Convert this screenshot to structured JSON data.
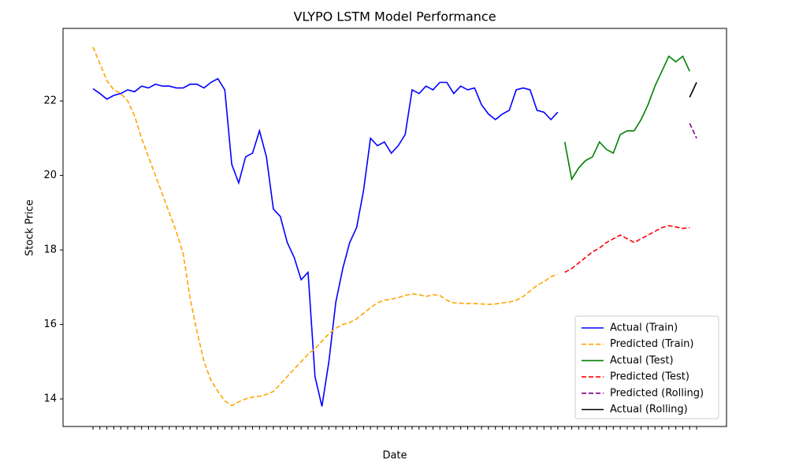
{
  "chart_data": {
    "type": "line",
    "title": "VLYPO LSTM Model Performance",
    "x_label": "Date",
    "y_label": "Stock Price",
    "categories": [
      null,
      null,
      null,
      null,
      null,
      null,
      null,
      null,
      null,
      null,
      null,
      null,
      null,
      null,
      null,
      null,
      null,
      null,
      null,
      null,
      null,
      null,
      null,
      null,
      null,
      null,
      null,
      null,
      null,
      null,
      null,
      null,
      null,
      null,
      null,
      null,
      null,
      null,
      null,
      null,
      null,
      null,
      null,
      null,
      null,
      null,
      null,
      null,
      null,
      null,
      null,
      null,
      null,
      null,
      null,
      null,
      null,
      null,
      null,
      null,
      null,
      null,
      null,
      null,
      null,
      null,
      null,
      null,
      null,
      null,
      null,
      null,
      null,
      null,
      null,
      null,
      null,
      null,
      null,
      null,
      null,
      null,
      null,
      null,
      null,
      null,
      null,
      null
    ],
    "ylim": [
      13.26,
      23.95
    ],
    "yticks": [
      14,
      16,
      18,
      20,
      22
    ],
    "legend": "lower right",
    "series": [
      {
        "name": "Actual (Train)",
        "color": "#0000ff",
        "linestyle": "solid",
        "values": [
          22.33,
          22.2,
          22.05,
          22.15,
          22.2,
          22.3,
          22.25,
          22.4,
          22.35,
          22.45,
          22.4,
          22.4,
          22.35,
          22.35,
          22.45,
          22.45,
          22.35,
          22.5,
          22.6,
          22.3,
          20.3,
          19.8,
          20.5,
          20.6,
          21.2,
          20.5,
          19.1,
          18.9,
          18.2,
          17.8,
          17.2,
          17.4,
          14.6,
          13.8,
          15.0,
          16.6,
          17.5,
          18.2,
          18.6,
          19.6,
          21.0,
          20.8,
          20.9,
          20.6,
          20.8,
          21.1,
          22.3,
          22.2,
          22.4,
          22.3,
          22.5,
          22.5,
          22.2,
          22.4,
          22.3,
          22.35,
          21.9,
          21.65,
          21.5,
          21.65,
          21.75,
          22.3,
          22.35,
          22.3,
          21.75,
          21.7,
          21.5,
          21.7,
          null,
          null,
          null,
          null,
          null,
          null,
          null,
          null,
          null,
          null,
          null,
          null,
          null,
          null,
          null,
          null,
          null,
          null,
          null,
          null
        ]
      },
      {
        "name": "Predicted (Train)",
        "color": "#ffa500",
        "linestyle": "dashed",
        "values": [
          23.45,
          23.0,
          22.55,
          22.3,
          22.2,
          22.0,
          21.6,
          21.0,
          20.5,
          20.0,
          19.5,
          19.0,
          18.5,
          17.9,
          16.7,
          15.8,
          15.0,
          14.5,
          14.2,
          13.95,
          13.82,
          13.92,
          14.0,
          14.05,
          14.07,
          14.12,
          14.2,
          14.4,
          14.6,
          14.8,
          15.0,
          15.2,
          15.35,
          15.55,
          15.75,
          15.9,
          16.0,
          16.05,
          16.15,
          16.3,
          16.45,
          16.58,
          16.65,
          16.68,
          16.72,
          16.78,
          16.82,
          16.8,
          16.75,
          16.8,
          16.78,
          16.65,
          16.58,
          16.57,
          16.56,
          16.56,
          16.55,
          16.54,
          16.55,
          16.58,
          16.6,
          16.65,
          16.75,
          16.9,
          17.05,
          17.15,
          17.28,
          17.35,
          null,
          null,
          null,
          null,
          null,
          null,
          null,
          null,
          null,
          null,
          null,
          null,
          null,
          null,
          null,
          null,
          null,
          null,
          null,
          null
        ]
      },
      {
        "name": "Actual (Test)",
        "color": "#008000",
        "linestyle": "solid",
        "values": [
          null,
          null,
          null,
          null,
          null,
          null,
          null,
          null,
          null,
          null,
          null,
          null,
          null,
          null,
          null,
          null,
          null,
          null,
          null,
          null,
          null,
          null,
          null,
          null,
          null,
          null,
          null,
          null,
          null,
          null,
          null,
          null,
          null,
          null,
          null,
          null,
          null,
          null,
          null,
          null,
          null,
          null,
          null,
          null,
          null,
          null,
          null,
          null,
          null,
          null,
          null,
          null,
          null,
          null,
          null,
          null,
          null,
          null,
          null,
          null,
          null,
          null,
          null,
          null,
          null,
          null,
          null,
          null,
          20.9,
          19.9,
          20.2,
          20.4,
          20.5,
          20.9,
          20.7,
          20.6,
          21.1,
          21.2,
          21.2,
          21.5,
          21.9,
          22.4,
          22.8,
          23.2,
          23.05,
          23.2,
          22.8,
          null
        ]
      },
      {
        "name": "Predicted (Test)",
        "color": "#ff0000",
        "linestyle": "dashed",
        "values": [
          null,
          null,
          null,
          null,
          null,
          null,
          null,
          null,
          null,
          null,
          null,
          null,
          null,
          null,
          null,
          null,
          null,
          null,
          null,
          null,
          null,
          null,
          null,
          null,
          null,
          null,
          null,
          null,
          null,
          null,
          null,
          null,
          null,
          null,
          null,
          null,
          null,
          null,
          null,
          null,
          null,
          null,
          null,
          null,
          null,
          null,
          null,
          null,
          null,
          null,
          null,
          null,
          null,
          null,
          null,
          null,
          null,
          null,
          null,
          null,
          null,
          null,
          null,
          null,
          null,
          null,
          null,
          null,
          17.4,
          17.5,
          17.65,
          17.8,
          17.95,
          18.05,
          18.2,
          18.3,
          18.4,
          18.3,
          18.2,
          18.3,
          18.4,
          18.5,
          18.6,
          18.65,
          18.62,
          18.58,
          18.6,
          null
        ]
      },
      {
        "name": "Predicted (Rolling)",
        "color": "#800080",
        "linestyle": "dashed",
        "values": [
          null,
          null,
          null,
          null,
          null,
          null,
          null,
          null,
          null,
          null,
          null,
          null,
          null,
          null,
          null,
          null,
          null,
          null,
          null,
          null,
          null,
          null,
          null,
          null,
          null,
          null,
          null,
          null,
          null,
          null,
          null,
          null,
          null,
          null,
          null,
          null,
          null,
          null,
          null,
          null,
          null,
          null,
          null,
          null,
          null,
          null,
          null,
          null,
          null,
          null,
          null,
          null,
          null,
          null,
          null,
          null,
          null,
          null,
          null,
          null,
          null,
          null,
          null,
          null,
          null,
          null,
          null,
          null,
          null,
          null,
          null,
          null,
          null,
          null,
          null,
          null,
          null,
          null,
          null,
          null,
          null,
          null,
          null,
          null,
          null,
          null,
          21.4,
          21.0
        ]
      },
      {
        "name": "Actual (Rolling)",
        "color": "#000000",
        "linestyle": "solid",
        "values": [
          null,
          null,
          null,
          null,
          null,
          null,
          null,
          null,
          null,
          null,
          null,
          null,
          null,
          null,
          null,
          null,
          null,
          null,
          null,
          null,
          null,
          null,
          null,
          null,
          null,
          null,
          null,
          null,
          null,
          null,
          null,
          null,
          null,
          null,
          null,
          null,
          null,
          null,
          null,
          null,
          null,
          null,
          null,
          null,
          null,
          null,
          null,
          null,
          null,
          null,
          null,
          null,
          null,
          null,
          null,
          null,
          null,
          null,
          null,
          null,
          null,
          null,
          null,
          null,
          null,
          null,
          null,
          null,
          null,
          null,
          null,
          null,
          null,
          null,
          null,
          null,
          null,
          null,
          null,
          null,
          null,
          null,
          null,
          null,
          null,
          null,
          22.1,
          22.5
        ]
      }
    ]
  }
}
